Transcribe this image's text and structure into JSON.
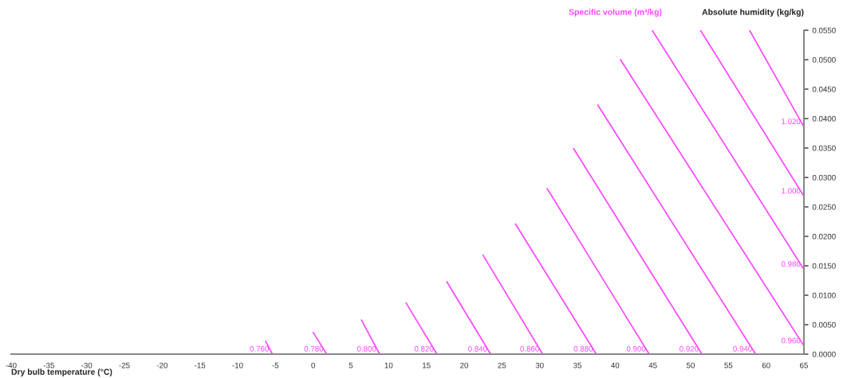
{
  "chart_data": {
    "type": "line",
    "title": "Specific volume (m³/kg)",
    "xlabel": "Dry bulb temperature (°C)",
    "ylabel": "Absolute humidity (kg/kg)",
    "xlim": [
      -40,
      65
    ],
    "xticks": [
      -40,
      -35,
      -30,
      -25,
      -20,
      -15,
      -10,
      -5,
      0,
      5,
      10,
      15,
      20,
      25,
      30,
      35,
      40,
      45,
      50,
      55,
      60,
      65
    ],
    "ylim": [
      0,
      0.055
    ],
    "yticks": [
      {
        "value": 0,
        "label": "0.0000"
      },
      {
        "value": 0.005,
        "label": "0.0050"
      },
      {
        "value": 0.01,
        "label": "0.0100"
      },
      {
        "value": 0.015,
        "label": "0.0150"
      },
      {
        "value": 0.02,
        "label": "0.0200"
      },
      {
        "value": 0.025,
        "label": "0.0250"
      },
      {
        "value": 0.03,
        "label": "0.0300"
      },
      {
        "value": 0.035,
        "label": "0.0350"
      },
      {
        "value": 0.04,
        "label": "0.0400"
      },
      {
        "value": 0.045,
        "label": "0.0450"
      },
      {
        "value": 0.05,
        "label": "0.0500"
      },
      {
        "value": 0.055,
        "label": "0.0550"
      }
    ],
    "grid": false,
    "marker": "none",
    "line_style": "solid",
    "series": [
      {
        "name": "0.760",
        "color": "#ff44ff",
        "x": [
          -6.3,
          -5.4
        ],
        "values": [
          0.0022,
          0
        ]
      },
      {
        "name": "0.780",
        "color": "#ff44ff",
        "x": [
          0.0,
          1.8
        ],
        "values": [
          0.0037,
          0
        ]
      },
      {
        "name": "0.800",
        "color": "#ff44ff",
        "x": [
          6.4,
          8.8
        ],
        "values": [
          0.0058,
          0
        ]
      },
      {
        "name": "0.820",
        "color": "#ff44ff",
        "x": [
          12.3,
          16.4
        ],
        "values": [
          0.0087,
          0
        ]
      },
      {
        "name": "0.840",
        "color": "#ff44ff",
        "x": [
          17.7,
          23.5
        ],
        "values": [
          0.0123,
          0
        ]
      },
      {
        "name": "0.860",
        "color": "#ff44ff",
        "x": [
          22.5,
          30.4
        ],
        "values": [
          0.0168,
          0
        ]
      },
      {
        "name": "0.880",
        "color": "#ff44ff",
        "x": [
          26.8,
          37.5
        ],
        "values": [
          0.0221,
          0
        ]
      },
      {
        "name": "0.900",
        "color": "#ff44ff",
        "x": [
          31.0,
          44.5
        ],
        "values": [
          0.0281,
          0
        ]
      },
      {
        "name": "0.920",
        "color": "#ff44ff",
        "x": [
          34.5,
          51.5
        ],
        "values": [
          0.0349,
          0
        ]
      },
      {
        "name": "0.940",
        "color": "#ff44ff",
        "x": [
          37.7,
          58.6
        ],
        "values": [
          0.0423,
          0
        ]
      },
      {
        "name": "0.960",
        "color": "#ff44ff",
        "x": [
          40.7,
          65
        ],
        "values": [
          0.05,
          0.0014
        ]
      },
      {
        "name": "0.980",
        "color": "#ff44ff",
        "x": [
          44.9,
          65
        ],
        "values": [
          0.055,
          0.0144
        ]
      },
      {
        "name": "1.000",
        "color": "#ff44ff",
        "x": [
          51.3,
          65
        ],
        "values": [
          0.055,
          0.0268
        ]
      },
      {
        "name": "1.020",
        "color": "#ff44ff",
        "x": [
          57.8,
          65
        ],
        "values": [
          0.055,
          0.0386
        ]
      }
    ]
  }
}
